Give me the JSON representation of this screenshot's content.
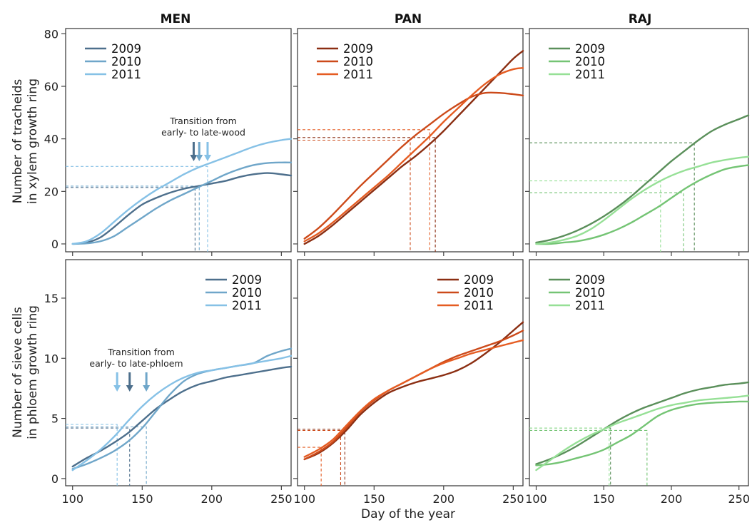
{
  "figure": {
    "columns": [
      "MEN",
      "PAN",
      "RAJ"
    ],
    "xlabel": "Day of the year",
    "ylabel_top": [
      "Number of tracheids",
      "in xylem growth ring"
    ],
    "ylabel_bottom": [
      "Number of sieve cells",
      "in phloem growth ring"
    ],
    "annotation_top": [
      "Transition from",
      "early- to late-wood"
    ],
    "annotation_bottom": [
      "Transition from",
      "early- to late-phloem"
    ]
  },
  "chart_data": [
    {
      "type": "line",
      "site": "MEN",
      "row": "xylem",
      "title": "MEN",
      "ylabel": "Number of tracheids in xylem growth ring",
      "xlabel": "",
      "xlim": [
        95,
        257
      ],
      "ylim": [
        -3,
        82
      ],
      "xticks": [
        100,
        150,
        200,
        250
      ],
      "yticks": [
        0,
        20,
        40,
        60,
        80
      ],
      "legend": "top-left",
      "series": [
        {
          "name": "2009",
          "color": "#4d6f8c",
          "x": [
            100,
            110,
            120,
            130,
            140,
            150,
            160,
            170,
            180,
            190,
            200,
            210,
            220,
            230,
            240,
            250,
            257
          ],
          "y": [
            0,
            0.5,
            2.5,
            6.5,
            11,
            15,
            17.5,
            19.5,
            21,
            22,
            23,
            24,
            25.5,
            26.5,
            27,
            26.5,
            26
          ]
        },
        {
          "name": "2010",
          "color": "#6fa6c9",
          "x": [
            100,
            110,
            120,
            130,
            140,
            150,
            160,
            170,
            180,
            190,
            200,
            210,
            220,
            230,
            240,
            250,
            257
          ],
          "y": [
            0,
            0.2,
            1,
            3,
            6.5,
            10,
            13.5,
            16.5,
            19,
            21.5,
            24,
            26.5,
            28.5,
            30,
            30.8,
            31,
            31
          ]
        },
        {
          "name": "2011",
          "color": "#86c1e6",
          "x": [
            100,
            110,
            120,
            130,
            140,
            150,
            160,
            170,
            180,
            190,
            200,
            210,
            220,
            230,
            240,
            250,
            257
          ],
          "y": [
            0,
            1,
            4,
            8.5,
            13,
            17,
            20.5,
            23.5,
            26.5,
            29,
            31,
            33,
            35,
            37,
            38.5,
            39.5,
            40
          ]
        }
      ],
      "guides": [
        {
          "color": "#4d6f8c",
          "x": 188,
          "y": 21.5
        },
        {
          "color": "#6fa6c9",
          "x": 191,
          "y": 22
        },
        {
          "color": "#86c1e6",
          "x": 197,
          "y": 29.5
        }
      ],
      "arrows": [
        {
          "color": "#4d6f8c",
          "x": 187
        },
        {
          "color": "#6fa6c9",
          "x": 191
        },
        {
          "color": "#86c1e6",
          "x": 197
        }
      ]
    },
    {
      "type": "line",
      "site": "PAN",
      "row": "xylem",
      "title": "PAN",
      "ylabel": "",
      "xlabel": "",
      "xlim": [
        95,
        257
      ],
      "ylim": [
        -3,
        82
      ],
      "xticks": [
        100,
        150,
        200,
        250
      ],
      "yticks": [
        0,
        20,
        40,
        60,
        80
      ],
      "legend": "top-left",
      "series": [
        {
          "name": "2009",
          "color": "#8b2e12",
          "x": [
            100,
            110,
            120,
            130,
            140,
            150,
            160,
            170,
            180,
            190,
            200,
            210,
            220,
            230,
            240,
            250,
            257
          ],
          "y": [
            0,
            3,
            7,
            11.5,
            16,
            20.5,
            25,
            29.5,
            33.5,
            38,
            43,
            48.5,
            54,
            59.5,
            65,
            70.5,
            73.5
          ]
        },
        {
          "name": "2010",
          "color": "#cc4a1a",
          "x": [
            100,
            110,
            120,
            130,
            140,
            150,
            160,
            170,
            180,
            190,
            200,
            210,
            220,
            230,
            240,
            250,
            257
          ],
          "y": [
            2,
            6,
            11,
            16.5,
            22,
            27,
            32,
            37,
            41.5,
            45.5,
            49.5,
            53,
            56,
            57.5,
            57.5,
            57,
            56.5
          ]
        },
        {
          "name": "2011",
          "color": "#e55c22",
          "x": [
            100,
            110,
            120,
            130,
            140,
            150,
            160,
            170,
            180,
            190,
            200,
            210,
            220,
            230,
            240,
            250,
            257
          ],
          "y": [
            1,
            4,
            8,
            12.5,
            17,
            21.5,
            26,
            31,
            36,
            41,
            46.5,
            51.5,
            56.5,
            61,
            64.5,
            66.5,
            67
          ]
        }
      ],
      "guides": [
        {
          "color": "#8b2e12",
          "x": 194,
          "y": 40.5
        },
        {
          "color": "#cc4a1a",
          "x": 176,
          "y": 39.5
        },
        {
          "color": "#e55c22",
          "x": 190,
          "y": 43.5
        }
      ],
      "arrows": []
    },
    {
      "type": "line",
      "site": "RAJ",
      "row": "xylem",
      "title": "RAJ",
      "ylabel": "",
      "xlabel": "",
      "xlim": [
        95,
        257
      ],
      "ylim": [
        -3,
        82
      ],
      "xticks": [
        100,
        150,
        200,
        250
      ],
      "yticks": [
        0,
        20,
        40,
        60,
        80
      ],
      "legend": "top-left",
      "series": [
        {
          "name": "2009",
          "color": "#5a8f5a",
          "x": [
            100,
            110,
            120,
            130,
            140,
            150,
            160,
            170,
            180,
            190,
            200,
            210,
            220,
            230,
            240,
            250,
            257
          ],
          "y": [
            0.5,
            1.5,
            3,
            5,
            7.5,
            10.5,
            14,
            18,
            22.5,
            27,
            31.5,
            35.5,
            39.5,
            43,
            45.5,
            47.5,
            49
          ]
        },
        {
          "name": "2010",
          "color": "#74c474",
          "x": [
            100,
            110,
            120,
            130,
            140,
            150,
            160,
            170,
            180,
            190,
            200,
            210,
            220,
            230,
            240,
            250,
            257
          ],
          "y": [
            0,
            0,
            0.5,
            1,
            2,
            3.5,
            5.5,
            8,
            11,
            14,
            17.5,
            21,
            24,
            26.5,
            28.5,
            29.5,
            30
          ]
        },
        {
          "name": "2011",
          "color": "#96e096",
          "x": [
            100,
            110,
            120,
            130,
            140,
            150,
            160,
            170,
            180,
            190,
            200,
            210,
            220,
            230,
            240,
            250,
            257
          ],
          "y": [
            0,
            0.5,
            1.5,
            3,
            5.5,
            9,
            13,
            17,
            20.5,
            23.5,
            26,
            28,
            29.5,
            31,
            32,
            32.8,
            33.2
          ]
        }
      ],
      "guides": [
        {
          "color": "#5a8f5a",
          "x": 217,
          "y": 38.5
        },
        {
          "color": "#74c474",
          "x": 209,
          "y": 19.5
        },
        {
          "color": "#96e096",
          "x": 192,
          "y": 24
        }
      ],
      "arrows": []
    },
    {
      "type": "line",
      "site": "MEN",
      "row": "phloem",
      "title": "",
      "ylabel": "Number of sieve cells in phloem growth ring",
      "xlabel": "",
      "xlim": [
        95,
        257
      ],
      "ylim": [
        -0.6,
        18.2
      ],
      "xticks": [
        100,
        150,
        200,
        250
      ],
      "yticks": [
        0,
        5,
        10,
        15
      ],
      "legend": "top-right",
      "series": [
        {
          "name": "2009",
          "color": "#4d6f8c",
          "x": [
            100,
            110,
            120,
            130,
            140,
            150,
            160,
            170,
            180,
            190,
            200,
            210,
            220,
            230,
            240,
            250,
            257
          ],
          "y": [
            1,
            1.7,
            2.3,
            3,
            3.8,
            4.8,
            5.8,
            6.6,
            7.3,
            7.8,
            8.1,
            8.4,
            8.6,
            8.8,
            9,
            9.2,
            9.3
          ]
        },
        {
          "name": "2010",
          "color": "#6fa6c9",
          "x": [
            100,
            110,
            120,
            130,
            140,
            150,
            160,
            170,
            180,
            190,
            200,
            210,
            220,
            230,
            240,
            250,
            257
          ],
          "y": [
            0.8,
            1.2,
            1.7,
            2.3,
            3.1,
            4.2,
            5.6,
            7,
            8.1,
            8.7,
            9,
            9.2,
            9.4,
            9.6,
            10.2,
            10.6,
            10.8
          ]
        },
        {
          "name": "2011",
          "color": "#86c1e6",
          "x": [
            100,
            110,
            120,
            130,
            140,
            150,
            160,
            170,
            180,
            190,
            200,
            210,
            220,
            230,
            240,
            250,
            257
          ],
          "y": [
            0.7,
            1.5,
            2.4,
            3.5,
            4.8,
            6,
            7,
            7.8,
            8.4,
            8.8,
            9,
            9.2,
            9.4,
            9.6,
            9.8,
            10,
            10.2
          ]
        }
      ],
      "guides": [
        {
          "color": "#4d6f8c",
          "x": 141,
          "y": 4.2
        },
        {
          "color": "#6fa6c9",
          "x": 153,
          "y": 4.3
        },
        {
          "color": "#86c1e6",
          "x": 132,
          "y": 4.5
        }
      ],
      "arrows": [
        {
          "color": "#86c1e6",
          "x": 132
        },
        {
          "color": "#4d6f8c",
          "x": 141
        },
        {
          "color": "#6fa6c9",
          "x": 153
        }
      ]
    },
    {
      "type": "line",
      "site": "PAN",
      "row": "phloem",
      "title": "",
      "ylabel": "",
      "xlabel": "Day of the year",
      "xlim": [
        95,
        257
      ],
      "ylim": [
        -0.6,
        18.2
      ],
      "xticks": [
        100,
        150,
        200,
        250
      ],
      "yticks": [
        0,
        5,
        10,
        15
      ],
      "legend": "top-right",
      "series": [
        {
          "name": "2009",
          "color": "#8b2e12",
          "x": [
            100,
            110,
            120,
            130,
            140,
            150,
            160,
            170,
            180,
            190,
            200,
            210,
            220,
            230,
            240,
            250,
            257
          ],
          "y": [
            1.6,
            2.1,
            2.9,
            4,
            5.3,
            6.3,
            7.1,
            7.6,
            8,
            8.3,
            8.6,
            9,
            9.6,
            10.4,
            11.3,
            12.3,
            13
          ]
        },
        {
          "name": "2010",
          "color": "#cc4a1a",
          "x": [
            100,
            110,
            120,
            130,
            140,
            150,
            160,
            170,
            180,
            190,
            200,
            210,
            220,
            230,
            240,
            250,
            257
          ],
          "y": [
            1.6,
            2.2,
            3,
            4.2,
            5.5,
            6.5,
            7.3,
            7.9,
            8.5,
            9.1,
            9.7,
            10.2,
            10.6,
            11,
            11.4,
            11.9,
            12.3
          ]
        },
        {
          "name": "2011",
          "color": "#e55c22",
          "x": [
            100,
            110,
            120,
            130,
            140,
            150,
            160,
            170,
            180,
            190,
            200,
            210,
            220,
            230,
            240,
            250,
            257
          ],
          "y": [
            1.8,
            2.4,
            3.2,
            4.4,
            5.6,
            6.6,
            7.3,
            7.9,
            8.5,
            9.1,
            9.6,
            10,
            10.4,
            10.7,
            11,
            11.3,
            11.5
          ]
        }
      ],
      "guides": [
        {
          "color": "#8b2e12",
          "x": 129,
          "y": 4.1
        },
        {
          "color": "#cc4a1a",
          "x": 126,
          "y": 4
        },
        {
          "color": "#e55c22",
          "x": 112,
          "y": 2.6
        }
      ],
      "arrows": []
    },
    {
      "type": "line",
      "site": "RAJ",
      "row": "phloem",
      "title": "",
      "ylabel": "",
      "xlabel": "",
      "xlim": [
        95,
        257
      ],
      "ylim": [
        -0.6,
        18.2
      ],
      "xticks": [
        100,
        150,
        200,
        250
      ],
      "yticks": [
        0,
        5,
        10,
        15
      ],
      "legend": "top-left",
      "series": [
        {
          "name": "2009",
          "color": "#5a8f5a",
          "x": [
            100,
            110,
            120,
            130,
            140,
            150,
            160,
            170,
            180,
            190,
            200,
            210,
            220,
            230,
            240,
            250,
            257
          ],
          "y": [
            1.2,
            1.6,
            2.1,
            2.7,
            3.4,
            4.1,
            4.8,
            5.4,
            5.9,
            6.3,
            6.7,
            7.1,
            7.4,
            7.6,
            7.8,
            7.9,
            8
          ]
        },
        {
          "name": "2010",
          "color": "#74c474",
          "x": [
            100,
            110,
            120,
            130,
            140,
            150,
            160,
            170,
            180,
            190,
            200,
            210,
            220,
            230,
            240,
            250,
            257
          ],
          "y": [
            1.1,
            1.2,
            1.4,
            1.7,
            2,
            2.4,
            3,
            3.6,
            4.4,
            5.2,
            5.7,
            6,
            6.2,
            6.3,
            6.35,
            6.4,
            6.4
          ]
        },
        {
          "name": "2011",
          "color": "#96e096",
          "x": [
            100,
            110,
            120,
            130,
            140,
            150,
            160,
            170,
            180,
            190,
            200,
            210,
            220,
            230,
            240,
            250,
            257
          ],
          "y": [
            0.7,
            1.5,
            2.3,
            3,
            3.6,
            4.1,
            4.6,
            5,
            5.4,
            5.8,
            6.1,
            6.3,
            6.5,
            6.6,
            6.7,
            6.8,
            6.9
          ]
        }
      ],
      "guides": [
        {
          "color": "#5a8f5a",
          "x": 155,
          "y": 4.2
        },
        {
          "color": "#74c474",
          "x": 182,
          "y": 4
        },
        {
          "color": "#96e096",
          "x": 154,
          "y": 4.2
        }
      ],
      "arrows": []
    }
  ]
}
